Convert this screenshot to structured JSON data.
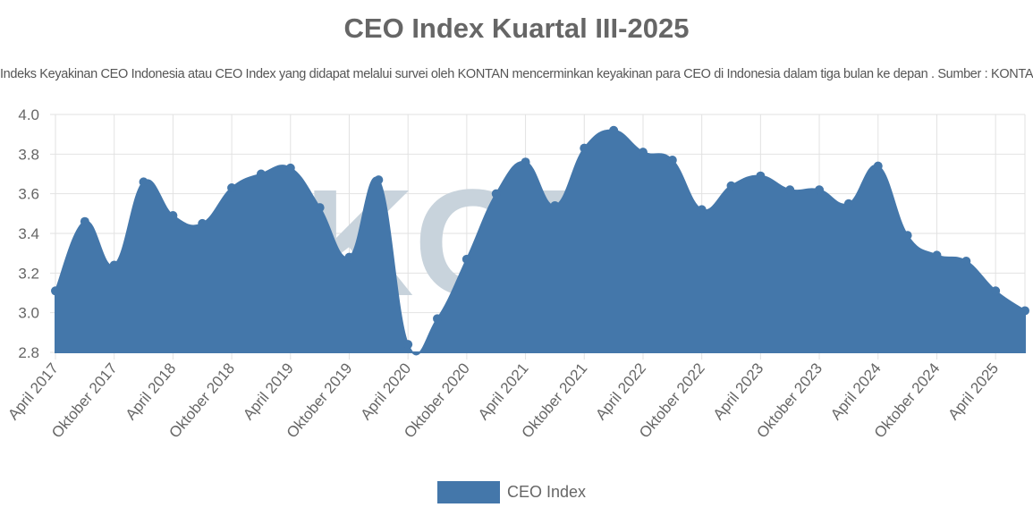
{
  "chart_data": {
    "type": "area",
    "title": "CEO Index Kuartal III-2025",
    "subtitle": "Indeks Keyakinan CEO Indonesia atau CEO Index yang didapat melalui survei oleh KONTAN mencerminkan keyakinan para CEO di Indonesia dalam tiga bulan ke depan . Sumber : KONTAN",
    "x_tick_labels": [
      "April 2017",
      "Oktober 2017",
      "April 2018",
      "Oktober 2018",
      "April 2019",
      "Oktober 2019",
      "April 2020",
      "Oktober 2020",
      "April 2021",
      "Oktober 2021",
      "April 2022",
      "Oktober 2022",
      "April 2023",
      "Oktober 2023",
      "April 2024",
      "Oktober 2024",
      "April 2025"
    ],
    "x_note": "quarterly points, tick label on every second point starting with the first",
    "series": [
      {
        "name": "CEO Index",
        "values": [
          3.11,
          3.46,
          3.24,
          3.66,
          3.49,
          3.45,
          3.63,
          3.7,
          3.73,
          3.53,
          3.28,
          3.67,
          2.84,
          2.97,
          3.27,
          3.6,
          3.76,
          3.54,
          3.83,
          3.92,
          3.81,
          3.77,
          3.52,
          3.64,
          3.69,
          3.62,
          3.62,
          3.55,
          3.74,
          3.39,
          3.29,
          3.26,
          3.11,
          3.01
        ]
      }
    ],
    "ylim": [
      2.8,
      4.0
    ],
    "y_ticks": [
      "2.8",
      "3.0",
      "3.2",
      "3.4",
      "3.6",
      "3.8",
      "4.0"
    ],
    "grid": true,
    "legend": "bottom",
    "color": "#4477aa",
    "watermark": "KONTAN"
  }
}
